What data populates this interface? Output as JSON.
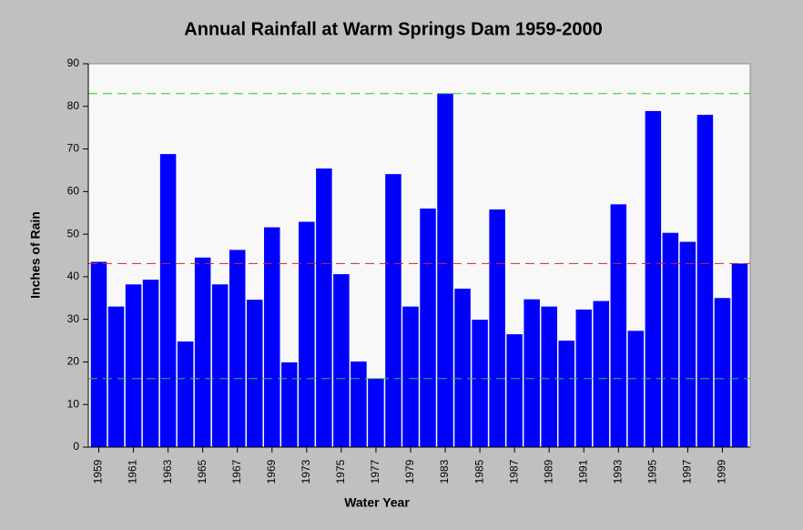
{
  "chart_data": {
    "type": "bar",
    "title": "Annual Rainfall at Warm Springs Dam 1959-2000",
    "x_label": "Water Year",
    "y_label": "Inches of Rain",
    "categories": [
      "1959",
      null,
      "1961",
      null,
      "1963",
      null,
      "1965",
      null,
      "1967",
      null,
      "1969",
      null,
      "1973",
      null,
      "1975",
      null,
      "1977",
      null,
      "1979",
      null,
      "1983",
      null,
      "1985",
      null,
      "1987",
      null,
      "1989",
      null,
      "1991",
      null,
      "1993",
      null,
      "1995",
      null,
      "1997",
      null,
      "1999",
      null
    ],
    "values": [
      43.5,
      33,
      38.2,
      39.3,
      68.8,
      24.8,
      44.5,
      38.2,
      46.3,
      34.6,
      51.6,
      19.9,
      52.9,
      65.4,
      40.6,
      20.1,
      16.1,
      64.1,
      33,
      56,
      83,
      37.2,
      29.9,
      55.8,
      26.5,
      34.7,
      33,
      25,
      32.3,
      34.3,
      57,
      27.3,
      78.9,
      50.3,
      48.2,
      78,
      35,
      43.1
    ],
    "color": "#0000ff",
    "ylim": [
      0,
      90
    ],
    "yticks": [
      0,
      10,
      20,
      30,
      40,
      50,
      60,
      70,
      80,
      90
    ],
    "grid": false,
    "reference_lines": [
      {
        "value": 83,
        "color": "#22cc22"
      },
      {
        "value": 43.1,
        "color": "#dd2222"
      },
      {
        "value": 16.1,
        "color": "#22cc22"
      }
    ]
  }
}
